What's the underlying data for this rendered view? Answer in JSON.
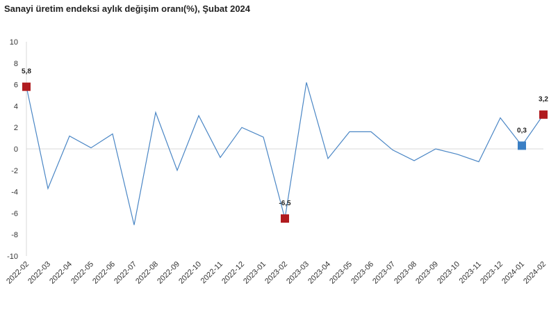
{
  "title": "Sanayi üretim endeksi aylık değişim oranı(%), Şubat 2024",
  "colors": {
    "line": "#4a86c5",
    "marker_red": "#b01b1f",
    "marker_blue": "#3a7fc4",
    "zero_line": "#d9d9d9"
  },
  "chart_data": {
    "type": "line",
    "title": "Sanayi üretim endeksi aylık değişim oranı(%), Şubat 2024",
    "xlabel": "",
    "ylabel": "",
    "ylim": [
      -10,
      10
    ],
    "yticks": [
      10,
      8,
      6,
      4,
      2,
      0,
      -2,
      -4,
      -6,
      -8,
      -10
    ],
    "grid": false,
    "categories": [
      "2022-02",
      "2022-03",
      "2022-04",
      "2022-05",
      "2022-06",
      "2022-07",
      "2022-08",
      "2022-09",
      "2022-10",
      "2022-11",
      "2022-12",
      "2023-01",
      "2023-02",
      "2023-03",
      "2023-04",
      "2023-05",
      "2023-06",
      "2023-07",
      "2023-08",
      "2023-09",
      "2023-10",
      "2023-11",
      "2023-12",
      "2024-01",
      "2024-02"
    ],
    "series": [
      {
        "values": [
          5.8,
          -3.7,
          1.2,
          0.1,
          1.4,
          -7.1,
          3.4,
          -2.0,
          3.1,
          -0.8,
          2.0,
          1.1,
          -6.5,
          6.2,
          -0.9,
          1.6,
          1.6,
          -0.1,
          -1.1,
          0.0,
          -0.5,
          -1.2,
          2.9,
          0.3,
          3.2
        ]
      }
    ],
    "highlighted_points": [
      {
        "index": 0,
        "label": "5,8",
        "color": "red"
      },
      {
        "index": 12,
        "label": "-6,5",
        "color": "red"
      },
      {
        "index": 23,
        "label": "0,3",
        "color": "blue"
      },
      {
        "index": 24,
        "label": "3,2",
        "color": "red"
      }
    ]
  }
}
